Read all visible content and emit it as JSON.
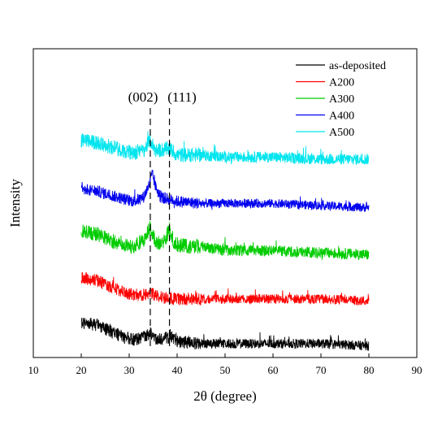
{
  "chart_data": {
    "type": "line",
    "title": "",
    "xlabel": "2θ (degree)",
    "ylabel": "Intensity",
    "xlim": [
      10,
      90
    ],
    "x_ticks": [
      10,
      20,
      30,
      40,
      50,
      60,
      70,
      80,
      90
    ],
    "y_ticks_shown": false,
    "grid": false,
    "legend_position": "top-right",
    "x_range_data": [
      20,
      80
    ],
    "annotations": [
      {
        "text": "(002)",
        "x": 34.4
      },
      {
        "text": "(111)",
        "x": 38.4
      }
    ],
    "series": [
      {
        "name": "as-deposited",
        "color": "#000000",
        "points": [
          [
            20,
            10
          ],
          [
            23,
            9
          ],
          [
            26,
            6
          ],
          [
            29,
            3
          ],
          [
            31,
            2
          ],
          [
            33,
            3
          ],
          [
            34.4,
            5
          ],
          [
            35.5,
            2
          ],
          [
            38.4,
            3
          ],
          [
            40,
            1
          ],
          [
            45,
            0
          ],
          [
            50,
            0
          ],
          [
            60,
            0
          ],
          [
            70,
            0
          ],
          [
            80,
            -1
          ]
        ],
        "noise": 3,
        "offset": 0
      },
      {
        "name": "A200",
        "color": "#ff0000",
        "points": [
          [
            20,
            10
          ],
          [
            23,
            9
          ],
          [
            26,
            6
          ],
          [
            29,
            3
          ],
          [
            31,
            2
          ],
          [
            33,
            2
          ],
          [
            34.4,
            3
          ],
          [
            36,
            1
          ],
          [
            40,
            0
          ],
          [
            50,
            0
          ],
          [
            60,
            0
          ],
          [
            70,
            0
          ],
          [
            80,
            -1
          ]
        ],
        "noise": 3,
        "offset": 55
      },
      {
        "name": "A300",
        "color": "#00cc00",
        "points": [
          [
            20,
            10
          ],
          [
            23,
            9
          ],
          [
            26,
            6
          ],
          [
            29,
            3
          ],
          [
            31,
            3
          ],
          [
            33,
            6
          ],
          [
            34.4,
            12
          ],
          [
            35.5,
            5
          ],
          [
            37,
            4
          ],
          [
            38.4,
            11
          ],
          [
            39.5,
            4
          ],
          [
            42,
            3
          ],
          [
            45,
            3
          ],
          [
            50,
            1
          ],
          [
            60,
            1
          ],
          [
            70,
            0
          ],
          [
            80,
            -1
          ]
        ],
        "noise": 3.5,
        "offset": 112
      },
      {
        "name": "A400",
        "color": "#0000ee",
        "points": [
          [
            20,
            8
          ],
          [
            23,
            7
          ],
          [
            26,
            5
          ],
          [
            29,
            3
          ],
          [
            31,
            2
          ],
          [
            33,
            4
          ],
          [
            34.2,
            10
          ],
          [
            34.8,
            15
          ],
          [
            35.5,
            9
          ],
          [
            36.5,
            4
          ],
          [
            38.4,
            3
          ],
          [
            40,
            2
          ],
          [
            45,
            1
          ],
          [
            50,
            1
          ],
          [
            60,
            1
          ],
          [
            70,
            0
          ],
          [
            80,
            -1
          ]
        ],
        "noise": 2.8,
        "offset": 170
      },
      {
        "name": "A500",
        "color": "#00e5ee",
        "points": [
          [
            20,
            9
          ],
          [
            23,
            8
          ],
          [
            26,
            6
          ],
          [
            29,
            4
          ],
          [
            31,
            3
          ],
          [
            33,
            4
          ],
          [
            34.4,
            9
          ],
          [
            35.5,
            4
          ],
          [
            38.4,
            5
          ],
          [
            40,
            2
          ],
          [
            45,
            2
          ],
          [
            50,
            1
          ],
          [
            60,
            1
          ],
          [
            70,
            0
          ],
          [
            80,
            0
          ]
        ],
        "noise": 3.5,
        "offset": 227
      }
    ]
  }
}
